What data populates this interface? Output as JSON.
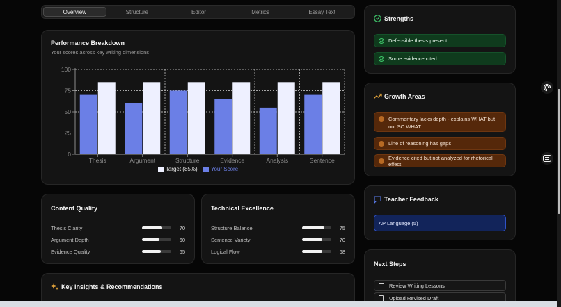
{
  "tabs": [
    {
      "label": "Overview",
      "active": true
    },
    {
      "label": "Structure",
      "active": false
    },
    {
      "label": "Editor",
      "active": false
    },
    {
      "label": "Metrics",
      "active": false
    },
    {
      "label": "Essay Text",
      "active": false
    }
  ],
  "performance": {
    "title": "Performance Breakdown",
    "subtitle": "Your scores across key writing dimensions"
  },
  "chart_data": {
    "type": "bar",
    "categories": [
      "Thesis",
      "Argument",
      "Structure",
      "Evidence",
      "Analysis",
      "Sentence"
    ],
    "series": [
      {
        "name": "Your Score",
        "values": [
          70,
          60,
          75,
          65,
          55,
          70
        ],
        "color": "#6b7fe6"
      },
      {
        "name": "Target (85%)",
        "values": [
          85,
          85,
          85,
          85,
          85,
          85
        ],
        "color": "#eef0ff"
      }
    ],
    "yticks": [
      0,
      25,
      50,
      75,
      100
    ],
    "ylim": [
      0,
      100
    ],
    "grid": true,
    "legend": "bottom"
  },
  "legend": {
    "target_label": "Target (85%)",
    "score_label": "Your Score"
  },
  "content_quality": {
    "title": "Content Quality",
    "rows": [
      {
        "label": "Thesis Clarity",
        "value": 70
      },
      {
        "label": "Argument Depth",
        "value": 60
      },
      {
        "label": "Evidence Quality",
        "value": 65
      }
    ]
  },
  "technical": {
    "title": "Technical Excellence",
    "rows": [
      {
        "label": "Structure Balance",
        "value": 75
      },
      {
        "label": "Sentence Variety",
        "value": 70
      },
      {
        "label": "Logical Flow",
        "value": 68
      }
    ]
  },
  "insights": {
    "title": "Key Insights & Recommendations"
  },
  "strengths": {
    "title": "Strengths",
    "items": [
      "Defensible thesis present",
      "Some evidence cited"
    ]
  },
  "growth": {
    "title": "Growth Areas",
    "items": [
      "Commentary lacks depth - explains WHAT but not SO WHAT",
      "Line of reasoning has gaps",
      "Evidence cited but not analyzed for rhetorical effect"
    ]
  },
  "feedback": {
    "title": "Teacher Feedback",
    "course": "AP Language (5)"
  },
  "next_steps": {
    "title": "Next Steps",
    "buttons": [
      "Review Writing Lessons",
      "Upload Revised Draft"
    ]
  },
  "icons": {
    "strengths": "check-circle-icon",
    "growth": "trending-up-icon",
    "feedback": "message-square-icon",
    "insights": "sparkles-icon",
    "lessons": "book-open-icon",
    "upload": "file-icon"
  }
}
